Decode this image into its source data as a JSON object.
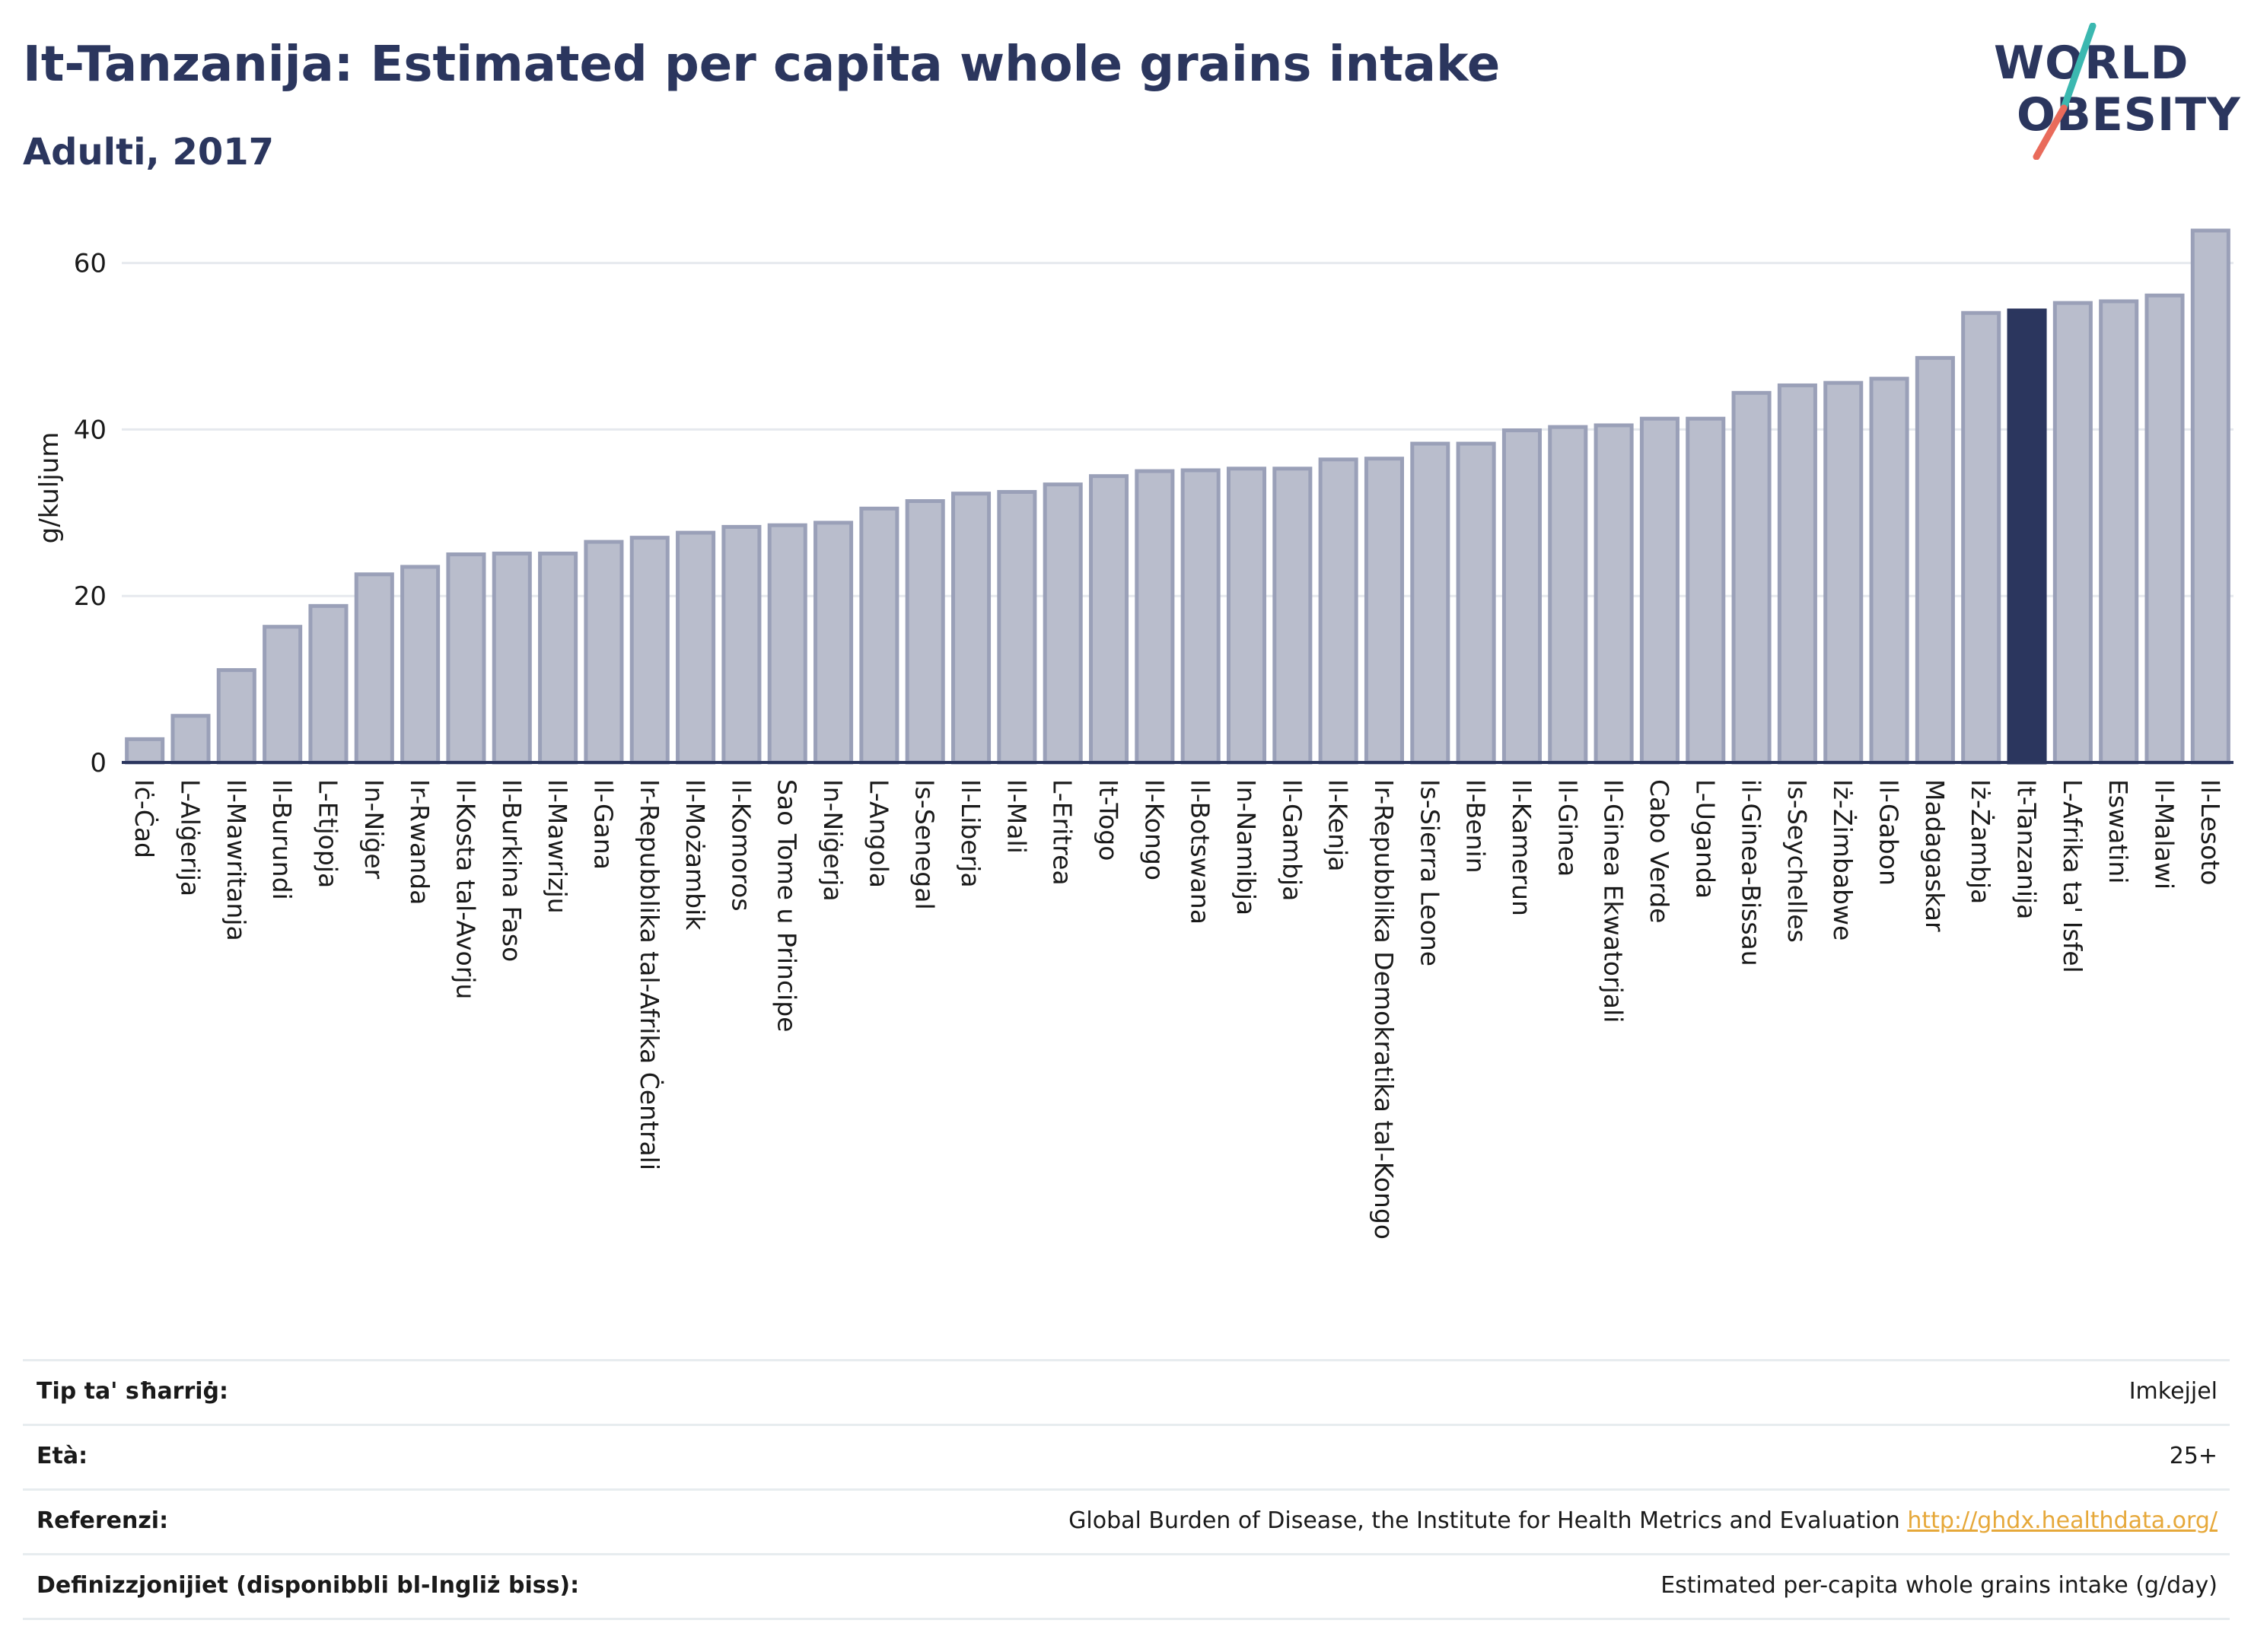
{
  "header": {
    "title": "It-Tanzanija: Estimated per capita whole grains intake",
    "subtitle": "Adulti, 2017",
    "logo_line1": "WORLD",
    "logo_line2": "OBESITY"
  },
  "colors": {
    "title": "#2b365e",
    "bar": "#b9bdcc",
    "bar_border": "#9aa0b8",
    "highlight": "#2b365e",
    "grid": "#e6e9ee",
    "link": "#e6a83a",
    "logo_slash_teal": "#3bb8b0",
    "logo_slash_red": "#e96b5b"
  },
  "chart_data": {
    "type": "bar",
    "ylabel": "g/kuljum",
    "ylim": [
      0,
      66
    ],
    "yticks": [
      0,
      20,
      40,
      60
    ],
    "grid": true,
    "highlight": "It-Tanzanija",
    "categories": [
      "Iċ-Ċad",
      "L-Alġerija",
      "Il-Mawritanja",
      "Il-Burundi",
      "L-Etjopja",
      "In-Niġer",
      "Ir-Rwanda",
      "Il-Kosta tal-Avorju",
      "Il-Burkina Faso",
      "Il-Mawrizju",
      "Il-Gana",
      "Ir-Repubblika tal-Afrika Ċentrali",
      "Il-Możambik",
      "Il-Komoros",
      "Sao Tome u Principe",
      "In-Niġerja",
      "L-Angola",
      "Is-Senegal",
      "Il-Liberja",
      "Il-Mali",
      "L-Eritrea",
      "It-Togo",
      "Il-Kongo",
      "Il-Botswana",
      "In-Namibja",
      "Il-Gambja",
      "Il-Kenja",
      "Ir-Repubblika Demokratika tal-Kongo",
      "Is-Sierra Leone",
      "Il-Benin",
      "Il-Kamerun",
      "Il-Ginea",
      "Il-Ginea Ekwatorjali",
      "Cabo Verde",
      "L-Uganda",
      "il-Ginea-Bissau",
      "Is-Seychelles",
      "Iż-Żimbabwe",
      "Il-Gabon",
      "Madagaskar",
      "Iż-Żambja",
      "It-Tanzanija",
      "L-Afrika ta' Isfel",
      "Eswatini",
      "Il-Malawi",
      "Il-Lesoto"
    ],
    "values": [
      2.8,
      5.6,
      11.1,
      16.3,
      18.8,
      22.6,
      23.5,
      25.0,
      25.1,
      25.1,
      26.5,
      27.0,
      27.6,
      28.3,
      28.5,
      28.8,
      30.5,
      31.4,
      32.3,
      32.5,
      33.4,
      34.4,
      35.0,
      35.1,
      35.3,
      35.3,
      36.4,
      36.5,
      38.3,
      38.3,
      39.9,
      40.3,
      40.5,
      41.3,
      41.3,
      44.4,
      45.3,
      45.6,
      46.1,
      48.6,
      54.0,
      54.3,
      55.2,
      55.4,
      56.1,
      63.9
    ]
  },
  "info_table": [
    {
      "key": "Tip ta' sħarriġ:",
      "value": "Imkejjel",
      "link": ""
    },
    {
      "key": "Età:",
      "value": "25+",
      "link": ""
    },
    {
      "key": "Referenzi:",
      "value": "Global Burden of Disease, the Institute for Health Metrics and Evaluation ",
      "link": "http://ghdx.healthdata.org/"
    },
    {
      "key": "Definizzjonijiet (disponibbli bl-Ingliż biss):",
      "value": "Estimated per-capita whole grains intake (g/day)",
      "link": ""
    }
  ]
}
